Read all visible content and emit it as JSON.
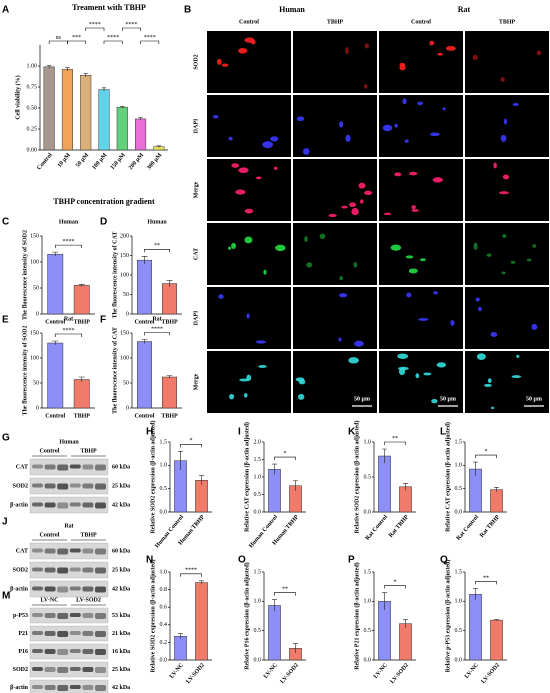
{
  "chart_data": [
    {
      "type": "bar",
      "panel": "A",
      "title": "Treament with TBHP",
      "ylabel": "Cell viability (%)",
      "xlabel": "TBHP concentration gradient",
      "categories": [
        "Control",
        "10 μM",
        "50 μM",
        "100 μM",
        "150 μM",
        "200 μM",
        "300 μM"
      ],
      "values": [
        0.99,
        0.96,
        0.89,
        0.72,
        0.51,
        0.37,
        0.04
      ],
      "errors": [
        0.015,
        0.02,
        0.02,
        0.02,
        0.01,
        0.015,
        0.01
      ],
      "colors": [
        "#a8978c",
        "#f2a35a",
        "#d9b07a",
        "#5fd3e8",
        "#62d17a",
        "#e86fd6",
        "#e8e05a"
      ],
      "ylim": [
        0,
        1.25
      ],
      "yticks": [
        {
          "value": 0,
          "label": "0.00"
        },
        0.25,
        {
          "value": 0.5,
          "label": "0.50"
        },
        0.75,
        {
          "value": 1,
          "label": "1.00"
        }
      ],
      "annotations": [
        "ns",
        "***",
        "****",
        "****",
        "****",
        "****"
      ]
    },
    {
      "type": "bar",
      "panel": "C",
      "title": "Human",
      "ylabel": "The fluorescence intensity of SOD2",
      "categories": [
        "Control",
        "TBHP"
      ],
      "values": [
        115,
        55
      ],
      "errors": [
        4,
        2
      ],
      "colors": [
        "#8c8ff5",
        "#f07b6b"
      ],
      "ylim": [
        0,
        150
      ],
      "yticks": [
        0,
        50,
        100,
        150
      ],
      "annotations": [
        "****"
      ]
    },
    {
      "type": "bar",
      "panel": "D",
      "title": "Human",
      "ylabel": "The fluorescence intensity of CAT",
      "categories": [
        "Control",
        "TBHP"
      ],
      "values": [
        138,
        78
      ],
      "errors": [
        10,
        8
      ],
      "colors": [
        "#8c8ff5",
        "#f07b6b"
      ],
      "ylim": [
        0,
        200
      ],
      "yticks": [
        0,
        50,
        100,
        150,
        200
      ],
      "annotations": [
        "**"
      ]
    },
    {
      "type": "bar",
      "panel": "E",
      "title": "Rat",
      "ylabel": "The fluorescence intensity of SOD2",
      "categories": [
        "Control",
        "TBHP"
      ],
      "values": [
        130,
        57
      ],
      "errors": [
        4,
        5
      ],
      "colors": [
        "#8c8ff5",
        "#f07b6b"
      ],
      "ylim": [
        0,
        150
      ],
      "yticks": [
        0,
        50,
        100,
        150
      ],
      "annotations": [
        "****"
      ]
    },
    {
      "type": "bar",
      "panel": "F",
      "title": "Rat",
      "ylabel": "The fluorescence intensity of CAT",
      "categories": [
        "Control",
        "TBHP"
      ],
      "values": [
        133,
        62
      ],
      "errors": [
        4,
        3
      ],
      "colors": [
        "#8c8ff5",
        "#f07b6b"
      ],
      "ylim": [
        0,
        150
      ],
      "yticks": [
        0,
        50,
        100,
        150
      ],
      "annotations": [
        "****"
      ]
    },
    {
      "type": "bar",
      "panel": "H",
      "ylabel": "Relative SOD2 expression (β-actin adjusted)",
      "categories": [
        "Human Control",
        "Human TBHP"
      ],
      "values": [
        1.1,
        0.68
      ],
      "errors": [
        0.2,
        0.1
      ],
      "colors": [
        "#8c8ff5",
        "#f07b6b"
      ],
      "ylim": [
        0,
        1.5
      ],
      "yticks": [
        {
          "value": 0,
          "label": "0.0"
        },
        0.5,
        {
          "value": 1,
          "label": "1.0"
        },
        1.5
      ],
      "annotations": [
        "*"
      ]
    },
    {
      "type": "bar",
      "panel": "I",
      "ylabel": "Relative CAT expression (β-actin adjusted)",
      "categories": [
        "Human Control",
        "Human TBHP"
      ],
      "values": [
        1.22,
        0.75
      ],
      "errors": [
        0.15,
        0.15
      ],
      "colors": [
        "#8c8ff5",
        "#f07b6b"
      ],
      "ylim": [
        0,
        2
      ],
      "yticks": [
        {
          "value": 0,
          "label": "0.0"
        },
        0.5,
        {
          "value": 1,
          "label": "1.0"
        },
        1.5,
        {
          "value": 2,
          "label": "2.0"
        }
      ],
      "annotations": [
        "*"
      ]
    },
    {
      "type": "bar",
      "panel": "K",
      "ylabel": "Relative SOD2 expression (β-actin adjusted)",
      "categories": [
        "Rat Control",
        "Rat TBHP"
      ],
      "values": [
        0.8,
        0.36
      ],
      "errors": [
        0.1,
        0.05
      ],
      "colors": [
        "#8c8ff5",
        "#f07b6b"
      ],
      "ylim": [
        0,
        1
      ],
      "yticks": [
        {
          "value": 0,
          "label": "0.0"
        },
        0.5,
        {
          "value": 1,
          "label": "1.0"
        }
      ],
      "annotations": [
        "**"
      ]
    },
    {
      "type": "bar",
      "panel": "L",
      "ylabel": "Relative CAT expression (β-actin adjusted)",
      "categories": [
        "Rat Control",
        "Rat TBHP"
      ],
      "values": [
        0.92,
        0.48
      ],
      "errors": [
        0.15,
        0.05
      ],
      "colors": [
        "#8c8ff5",
        "#f07b6b"
      ],
      "ylim": [
        0,
        1.5
      ],
      "yticks": [
        {
          "value": 0,
          "label": "0.0"
        },
        0.5,
        {
          "value": 1,
          "label": "1.0"
        },
        1.5
      ],
      "annotations": [
        "*"
      ]
    },
    {
      "type": "bar",
      "panel": "N",
      "ylabel": "Relative SOD2 expression (β-actin adjusted)",
      "categories": [
        "LV-NC",
        "LV-SOD2"
      ],
      "values": [
        0.27,
        0.88
      ],
      "errors": [
        0.03,
        0.02
      ],
      "colors": [
        "#8c8ff5",
        "#f07b6b"
      ],
      "ylim": [
        0,
        1
      ],
      "yticks": [
        {
          "value": 0,
          "label": "0.0"
        },
        0.2,
        0.4,
        0.6,
        0.8,
        {
          "value": 1,
          "label": "1.0"
        }
      ],
      "annotations": [
        "****"
      ]
    },
    {
      "type": "bar",
      "panel": "O",
      "ylabel": "Relative P16 expression (β-actin adjusted)",
      "categories": [
        "LV-NC",
        "LV-SOD2"
      ],
      "values": [
        0.93,
        0.2
      ],
      "errors": [
        0.1,
        0.08
      ],
      "colors": [
        "#8c8ff5",
        "#f07b6b"
      ],
      "ylim": [
        0,
        1.5
      ],
      "yticks": [
        {
          "value": 0,
          "label": "0.0"
        },
        0.5,
        {
          "value": 1,
          "label": "1.0"
        },
        1.5
      ],
      "annotations": [
        "**"
      ]
    },
    {
      "type": "bar",
      "panel": "P",
      "ylabel": "Relative P21 expression (β-actin adjusted)",
      "categories": [
        "LV-NC",
        "LV-SOD2"
      ],
      "values": [
        1.0,
        0.62
      ],
      "errors": [
        0.15,
        0.07
      ],
      "colors": [
        "#8c8ff5",
        "#f07b6b"
      ],
      "ylim": [
        0,
        1.5
      ],
      "yticks": [
        {
          "value": 0,
          "label": "0.0"
        },
        0.5,
        {
          "value": 1,
          "label": "1.0"
        },
        1.5
      ],
      "annotations": [
        "*"
      ]
    },
    {
      "type": "bar",
      "panel": "Q",
      "ylabel": "Relative p-P53 expression (β-actin adjusted)",
      "categories": [
        "LV-NC",
        "LV-SOD2"
      ],
      "values": [
        1.12,
        0.68
      ],
      "errors": [
        0.1,
        0.01
      ],
      "colors": [
        "#8c8ff5",
        "#f07b6b"
      ],
      "ylim": [
        0,
        1.5
      ],
      "yticks": [
        {
          "value": 0,
          "label": "0.0"
        },
        0.5,
        {
          "value": 1,
          "label": "1.0"
        },
        1.5
      ],
      "annotations": [
        "**"
      ]
    }
  ],
  "micrographs": {
    "panel": "B",
    "species": [
      "Human",
      "Rat"
    ],
    "conditions": [
      "Control",
      "TBHP",
      "Control",
      "TBHP"
    ],
    "rows": [
      "SOD2",
      "DAPI",
      "Merge",
      "CAT",
      "DAPI",
      "Merge"
    ],
    "scale_bars": [
      "50 μm",
      "50 μm",
      "50 μm"
    ]
  },
  "blots": [
    {
      "panel": "G",
      "title": "Human",
      "groups": [
        "Control",
        "TBHP"
      ],
      "rows": [
        {
          "protein": "CAT",
          "size": "60 kDa"
        },
        {
          "protein": "SOD2",
          "size": "25 kDa"
        },
        {
          "protein": "β-actin",
          "size": "42 kDa"
        }
      ]
    },
    {
      "panel": "J",
      "title": "Rat",
      "groups": [
        "Control",
        "TBHP"
      ],
      "rows": [
        {
          "protein": "CAT",
          "size": "60 kDa"
        },
        {
          "protein": "SOD2",
          "size": "25 kDa"
        },
        {
          "protein": "β-actin",
          "size": "42 kDa"
        }
      ]
    },
    {
      "panel": "M",
      "groups": [
        "LV-NC",
        "LV-SOD2"
      ],
      "rows": [
        {
          "protein": "p-P53",
          "size": "53 kDa"
        },
        {
          "protein": "P21",
          "size": "21 kDa"
        },
        {
          "protein": "P16",
          "size": "16 kDa"
        },
        {
          "protein": "SOD2",
          "size": "25 kDa"
        },
        {
          "protein": "β-actin",
          "size": "42 kDa"
        }
      ]
    }
  ]
}
